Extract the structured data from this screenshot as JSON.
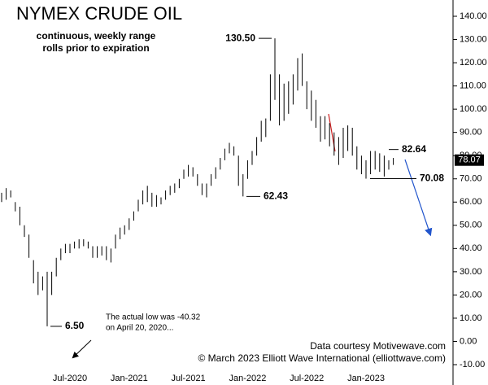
{
  "chart_data": {
    "type": "range-bar",
    "title": "NYMEX CRUDE OIL",
    "subtitle": [
      "continuous, weekly range",
      "rolls prior to expiration"
    ],
    "categories": [
      null,
      null,
      null,
      null,
      null,
      null,
      null,
      null,
      null,
      null,
      null,
      null,
      null,
      null,
      null,
      "Jul-2020",
      null,
      null,
      null,
      null,
      null,
      null,
      null,
      null,
      null,
      null,
      null,
      null,
      "Jan-2021",
      null,
      null,
      null,
      null,
      null,
      null,
      null,
      null,
      null,
      null,
      null,
      null,
      "Jul-2021",
      null,
      null,
      null,
      null,
      null,
      null,
      null,
      null,
      null,
      null,
      null,
      null,
      "Jan-2022",
      null,
      null,
      null,
      null,
      null,
      null,
      null,
      null,
      null,
      null,
      null,
      null,
      "Jul-2022",
      null,
      null,
      null,
      null,
      null,
      null,
      null,
      null,
      null,
      null,
      null,
      null,
      "Jan-2023",
      null,
      null,
      null,
      null,
      null,
      null
    ],
    "series": [
      {
        "name": "high",
        "color": "#000000",
        "values": [
          64,
          66,
          65,
          60,
          58,
          50,
          46,
          35,
          30,
          28,
          30,
          30,
          36,
          40,
          42,
          42,
          43,
          44,
          44,
          43,
          41,
          41,
          41,
          41,
          40,
          46,
          49,
          50,
          53,
          56,
          61,
          65,
          67,
          64,
          63,
          62,
          65,
          67,
          68,
          70,
          74,
          76,
          75,
          72,
          68,
          68,
          72,
          75,
          79,
          83,
          85.5,
          84,
          80,
          72,
          78,
          82,
          88,
          95,
          96,
          115,
          130.5,
          115,
          111,
          112,
          115,
          122,
          124,
          112,
          108,
          104,
          97,
          97,
          94,
          90,
          88,
          92,
          93,
          92,
          84,
          80,
          78,
          82,
          82,
          81,
          80,
          78,
          79
        ]
      },
      {
        "name": "low",
        "color": "#000000",
        "values": [
          60,
          61,
          62,
          56,
          50,
          45,
          36,
          25,
          20,
          22,
          6.5,
          20,
          28,
          35,
          38,
          38,
          40,
          40,
          41,
          40,
          36,
          36,
          37,
          35,
          34,
          40,
          44,
          46,
          48,
          52,
          56,
          59,
          60,
          58,
          58,
          59,
          61,
          63,
          64,
          66,
          70,
          71,
          71,
          67,
          63,
          62,
          67,
          70,
          74,
          78,
          81,
          80,
          67,
          62.43,
          70,
          76,
          80,
          86,
          88,
          95,
          104,
          93,
          95,
          98,
          102,
          108,
          110,
          100,
          95,
          92,
          86,
          87,
          84,
          80,
          76,
          79,
          82,
          80,
          74,
          72,
          70.08,
          72,
          74,
          73,
          71,
          74,
          76
        ]
      }
    ],
    "ylim": [
      -10,
      140
    ],
    "yticks": [
      {
        "value": -10,
        "label": "-10.00"
      },
      {
        "value": 0,
        "label": "0.00"
      },
      {
        "value": 10,
        "label": "10.00"
      },
      {
        "value": 20,
        "label": "20.00"
      },
      {
        "value": 30,
        "label": "30.00"
      },
      {
        "value": 40,
        "label": "40.00"
      },
      {
        "value": 50,
        "label": "50.00"
      },
      {
        "value": 60,
        "label": "60.00"
      },
      {
        "value": 70,
        "label": "70.00"
      },
      {
        "value": 80,
        "label": "80.00"
      },
      {
        "value": 90,
        "label": "90.00"
      },
      {
        "value": 100,
        "label": "100.00"
      },
      {
        "value": 110,
        "label": "110.00"
      },
      {
        "value": 120,
        "label": "120.00"
      },
      {
        "value": 130,
        "label": "130.00"
      },
      {
        "value": 140,
        "label": "140.00"
      }
    ],
    "annotations": [
      {
        "value": 130.5,
        "label": "130.50"
      },
      {
        "value": 62.43,
        "label": "62.43"
      },
      {
        "value": 6.5,
        "label": "6.50"
      },
      {
        "value": 82.64,
        "label": "82.64"
      },
      {
        "value": 70.08,
        "label": "70.08"
      }
    ],
    "last_price": 78.07,
    "notes": [
      "The actual low was -40.32",
      "on April 20, 2020...",
      "Data courtesy Motivewave.com",
      "© March 2023 Elliott Wave International (elliottwave.com)"
    ]
  }
}
